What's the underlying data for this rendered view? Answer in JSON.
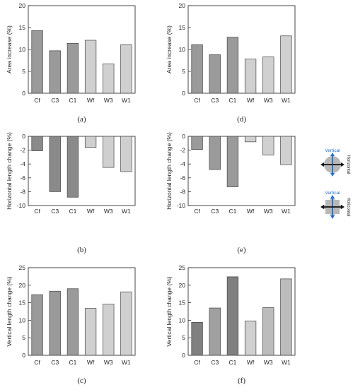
{
  "colors": {
    "Cf": "#8e8e8e",
    "C3": "#8e8e8e",
    "C1": "#8e8e8e",
    "Wf": "#cfcfcf",
    "W3": "#cfcfcf",
    "W1": "#cfcfcf"
  },
  "colors_by_panel": {
    "a": [
      "#9a9a9a",
      "#9a9a9a",
      "#9a9a9a",
      "#d0d0d0",
      "#d0d0d0",
      "#d0d0d0"
    ],
    "b": [
      "#8a8a8a",
      "#8a8a8a",
      "#8a8a8a",
      "#cfcfcf",
      "#cfcfcf",
      "#cfcfcf"
    ],
    "c": [
      "#9a9a9a",
      "#9a9a9a",
      "#9a9a9a",
      "#d0d0d0",
      "#d0d0d0",
      "#d0d0d0"
    ],
    "d": [
      "#9a9a9a",
      "#9a9a9a",
      "#9a9a9a",
      "#d0d0d0",
      "#d0d0d0",
      "#d0d0d0"
    ],
    "e": [
      "#9a9a9a",
      "#9a9a9a",
      "#9a9a9a",
      "#d0d0d0",
      "#d0d0d0",
      "#d0d0d0"
    ],
    "f": [
      "#808080",
      "#a0a0a0",
      "#808080",
      "#d0d0d0",
      "#bcbcbc",
      "#bcbcbc"
    ]
  },
  "legend": {
    "vertical_label": "Vertical",
    "horizontal_label": "Horizontal"
  },
  "chart_data": [
    {
      "id": "a",
      "panel_label": "(a)",
      "type": "bar",
      "categories": [
        "Cf",
        "C3",
        "C1",
        "Wf",
        "W3",
        "W1"
      ],
      "values": [
        14.3,
        9.7,
        11.4,
        12.1,
        6.7,
        11.1
      ],
      "ylabel": "Area increase (%)",
      "ylim": [
        0,
        20
      ],
      "yticks": [
        0,
        5,
        10,
        15,
        20
      ],
      "grid": false
    },
    {
      "id": "d",
      "panel_label": "(d)",
      "type": "bar",
      "categories": [
        "Cf",
        "C3",
        "C1",
        "Wf",
        "W3",
        "W1"
      ],
      "values": [
        11.1,
        8.8,
        12.8,
        7.8,
        8.3,
        13.1
      ],
      "ylabel": "Area increase (%)",
      "ylim": [
        0,
        20
      ],
      "yticks": [
        0,
        5,
        10,
        15,
        20
      ],
      "grid": false
    },
    {
      "id": "b",
      "panel_label": "(b)",
      "type": "bar",
      "categories": [
        "Cf",
        "C3",
        "C1",
        "Wf",
        "W3",
        "W1"
      ],
      "values": [
        -2.1,
        -8.0,
        -8.8,
        -1.6,
        -4.5,
        -5.1
      ],
      "ylabel": "Horizontal length change (%)",
      "ylim": [
        -10,
        0
      ],
      "yticks": [
        0,
        -2,
        -4,
        -6,
        -8,
        -10
      ],
      "grid": false
    },
    {
      "id": "e",
      "panel_label": "(e)",
      "type": "bar",
      "categories": [
        "Cf",
        "C3",
        "C1",
        "Wf",
        "W3",
        "W1"
      ],
      "values": [
        -1.9,
        -4.8,
        -7.3,
        -0.8,
        -2.7,
        -4.1
      ],
      "ylabel": "Horizontal length change (%)",
      "ylim": [
        -10,
        0
      ],
      "yticks": [
        0,
        -2,
        -4,
        -6,
        -8,
        -10
      ],
      "grid": false
    },
    {
      "id": "c",
      "panel_label": "(c)",
      "type": "bar",
      "categories": [
        "Cf",
        "C3",
        "C1",
        "Wf",
        "W3",
        "W1"
      ],
      "values": [
        17.3,
        18.3,
        19.0,
        13.4,
        14.6,
        18.1
      ],
      "ylabel": "Vertical length change (%)",
      "ylim": [
        0,
        25
      ],
      "yticks": [
        0,
        5,
        10,
        15,
        20,
        25
      ],
      "grid": false
    },
    {
      "id": "f",
      "panel_label": "(f)",
      "type": "bar",
      "categories": [
        "Cf",
        "C3",
        "C1",
        "Wf",
        "W3",
        "W1"
      ],
      "values": [
        9.4,
        13.5,
        22.4,
        9.8,
        13.6,
        21.8
      ],
      "ylabel": "Vertical length change (%)",
      "ylim": [
        0,
        25
      ],
      "yticks": [
        0,
        5,
        10,
        15,
        20,
        25
      ],
      "grid": false
    }
  ]
}
